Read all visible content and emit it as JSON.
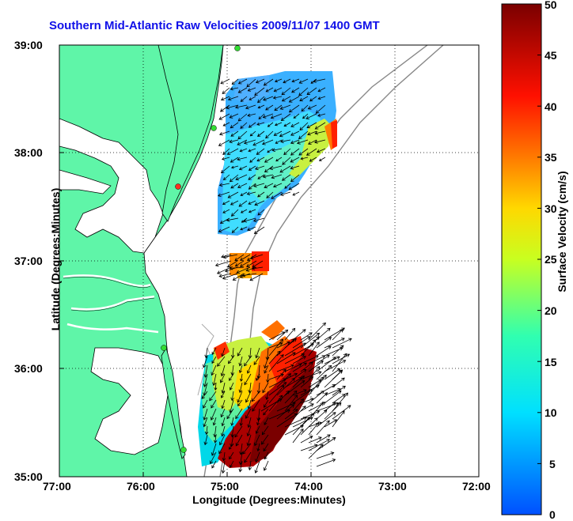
{
  "title": "Southern Mid-Atlantic Raw Velocities 2009/11/07 1400 GMT",
  "x_axis": {
    "label": "Longitude (Degrees:Minutes)",
    "ticks": [
      "77:00",
      "76:00",
      "75:00",
      "74:00",
      "73:00",
      "72:00"
    ]
  },
  "y_axis": {
    "label": "Latitude (Degrees:Minutes)",
    "ticks": [
      "39:00",
      "38:00",
      "37:00",
      "36:00",
      "35:00"
    ]
  },
  "colorbar": {
    "label": "Surface Velocity (cm/s)",
    "ticks": [
      "50",
      "45",
      "40",
      "35",
      "30",
      "25",
      "20",
      "15",
      "10",
      "5",
      "0"
    ],
    "min": 0,
    "max": 50
  },
  "colors": {
    "land": "#5ff5a8",
    "title": "#1010e8",
    "station": "#33dd33"
  },
  "map": {
    "lon_range": [
      -77,
      -72
    ],
    "lat_range": [
      35,
      39
    ],
    "grid": "dotted"
  }
}
